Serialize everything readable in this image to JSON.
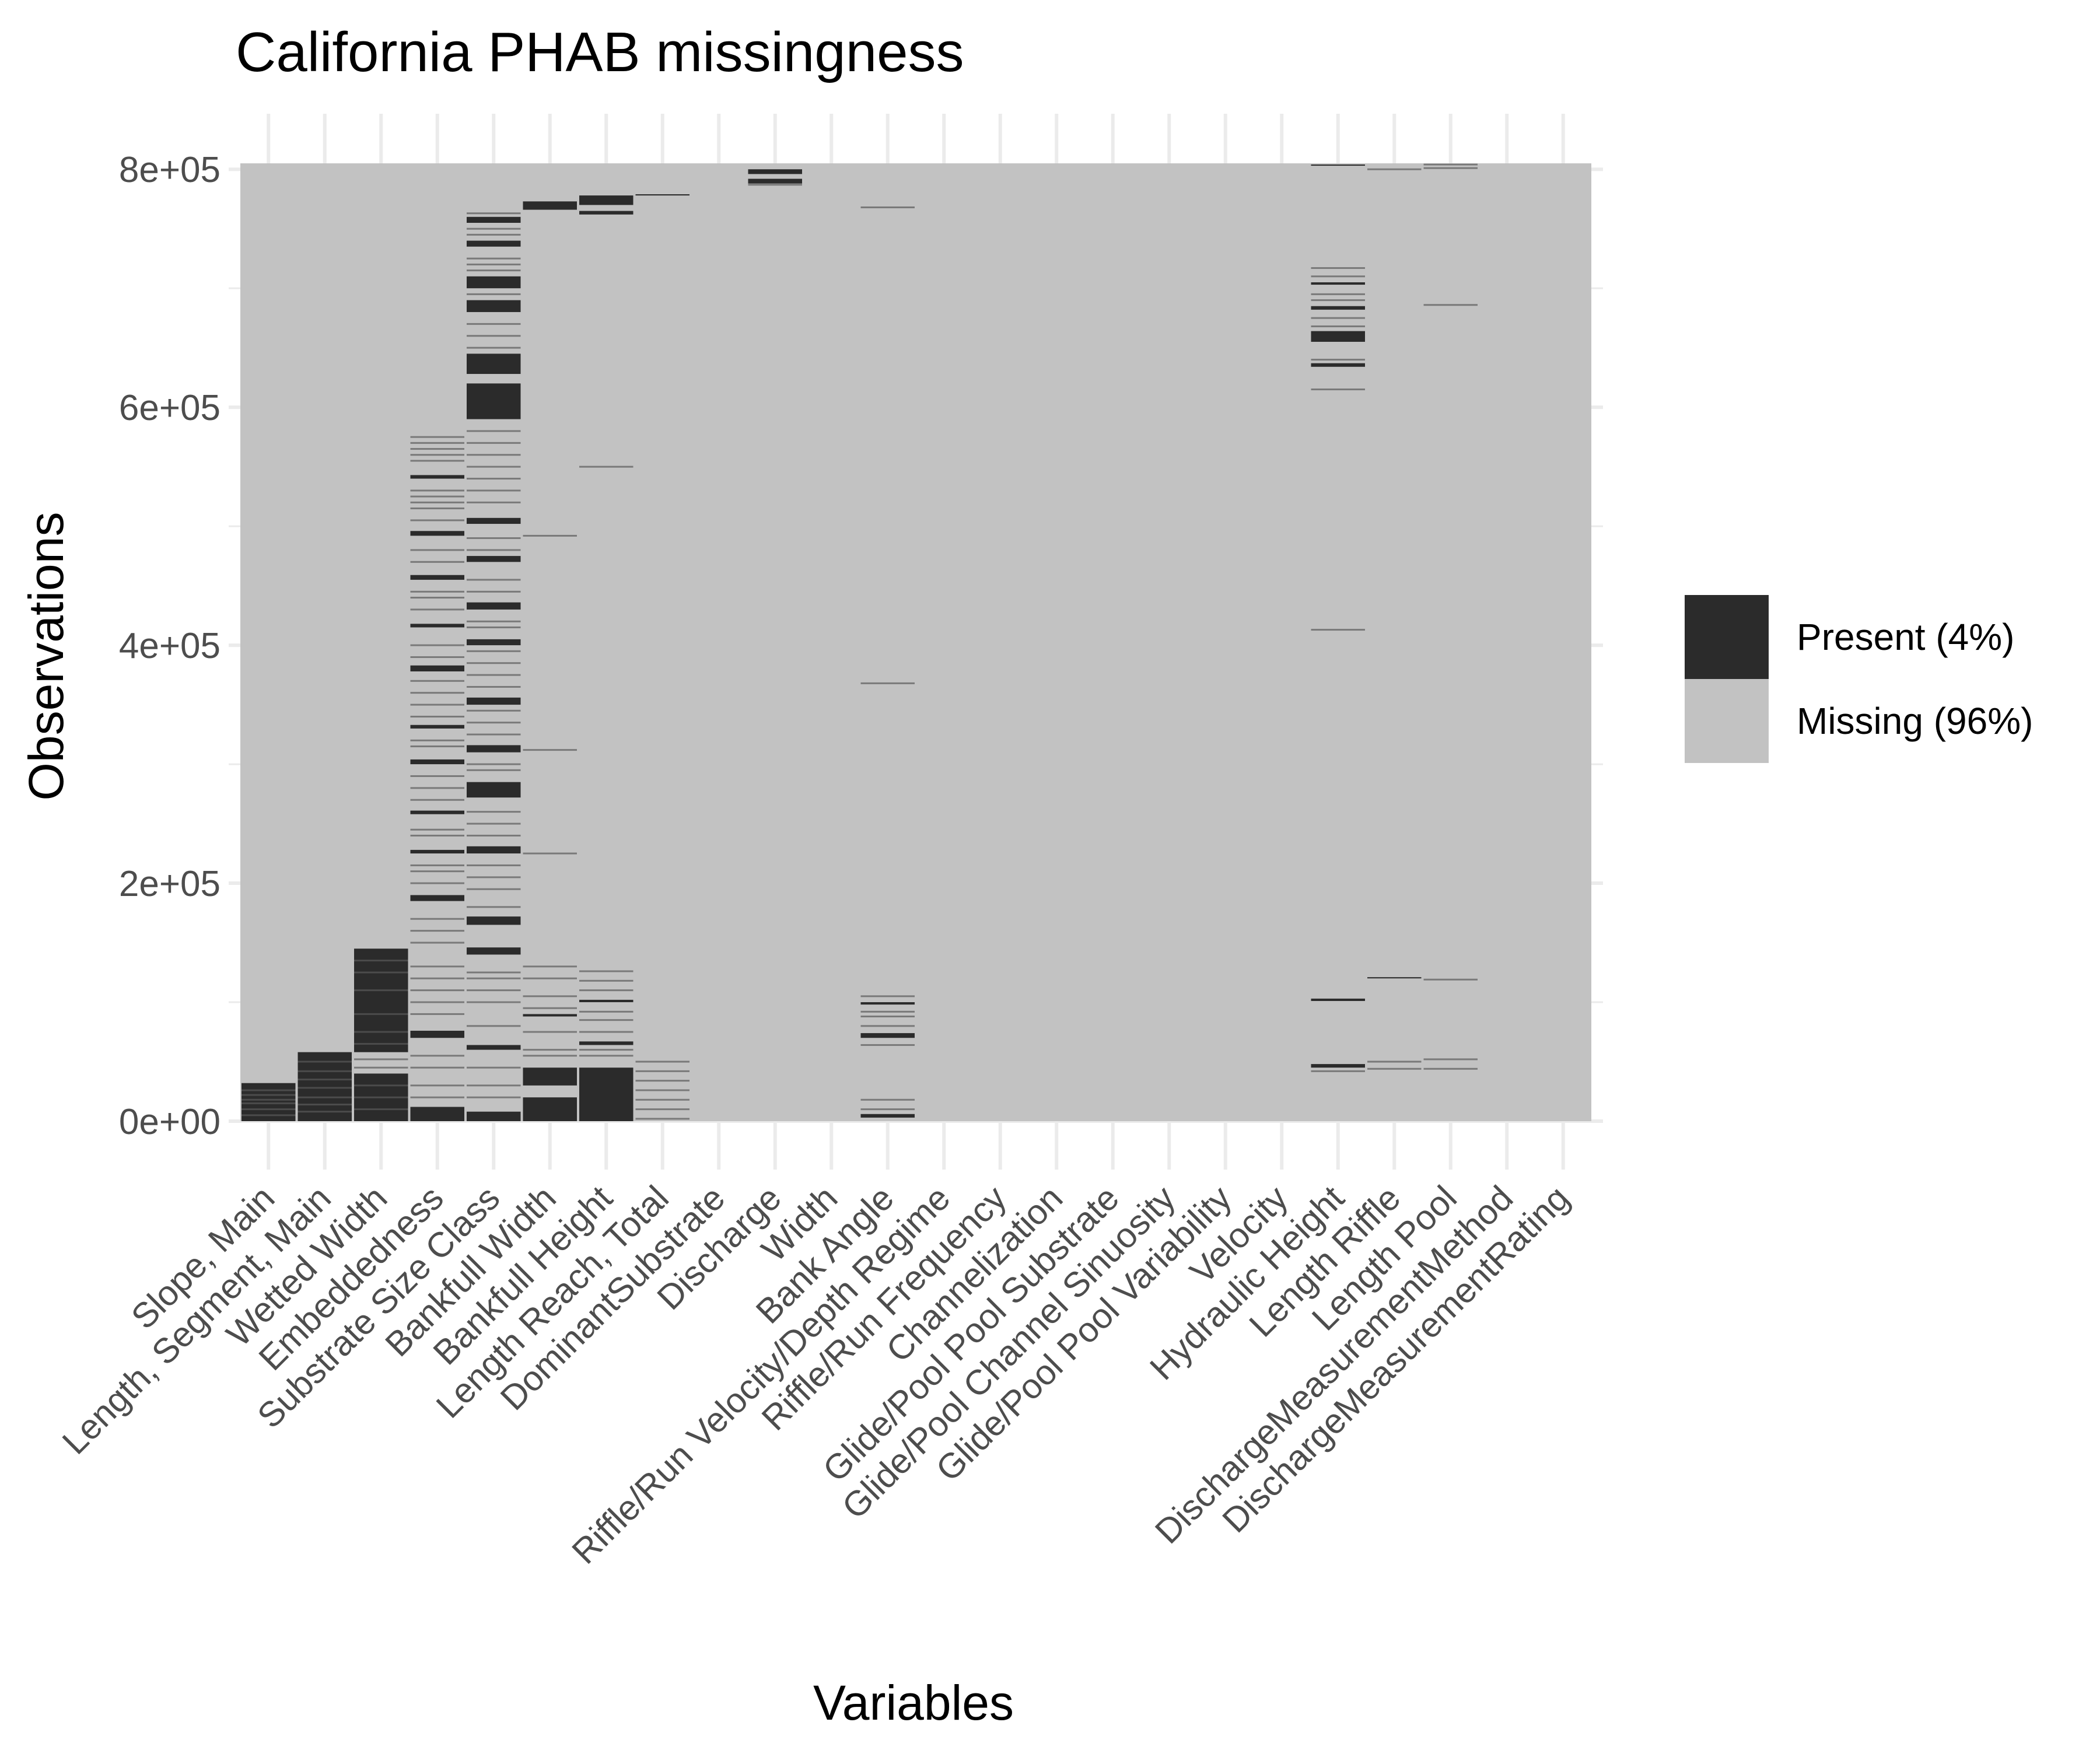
{
  "chart_data": {
    "type": "heatmap",
    "title": "California PHAB missingness",
    "xlabel": "Variables",
    "ylabel": "Observations",
    "ylim": [
      0,
      805000
    ],
    "y_ticks": [
      {
        "value": 0,
        "label": "0e+00"
      },
      {
        "value": 200000,
        "label": "2e+05"
      },
      {
        "value": 400000,
        "label": "4e+05"
      },
      {
        "value": 600000,
        "label": "6e+05"
      },
      {
        "value": 800000,
        "label": "8e+05"
      }
    ],
    "grid": true,
    "legend_position": "right",
    "legend": [
      {
        "label": "Present (4%)",
        "color": "#2b2b2b"
      },
      {
        "label": "Missing (96%)",
        "color": "#c2c2c2"
      }
    ],
    "colors": {
      "present": "#2b2b2b",
      "missing": "#c2c2c2",
      "grid": "#ebebeb"
    },
    "variables": [
      "Slope, Main",
      "Length, Segment, Main",
      "Wetted Width",
      "Embeddedness",
      "Substrate Size Class",
      "Bankfull Width",
      "Bankfull Height",
      "Length Reach, Total",
      "DominantSubstrate",
      "Discharge",
      "Width",
      "Bank Angle",
      "Riffle/Run Velocity/Depth Regime",
      "Riffle/Run Frequency",
      "Channelization",
      "Glide/Pool Pool Substrate",
      "Glide/Pool Channel Sinuosity",
      "Glide/Pool Pool Variability",
      "Velocity",
      "Hydraulic Height",
      "Length Riffle",
      "Length Pool",
      "DischargeMeasurementMethod",
      "DischargeMeasurementRating"
    ],
    "present_ranges": [
      [
        [
          0,
          32000
        ]
      ],
      [
        [
          0,
          58000
        ]
      ],
      [
        [
          0,
          40000
        ],
        [
          58000,
          145000
        ]
      ],
      [
        [
          0,
          12000
        ],
        [
          70000,
          76000
        ],
        [
          185000,
          190000
        ],
        [
          225000,
          228000
        ],
        [
          258000,
          261000
        ],
        [
          300000,
          304000
        ],
        [
          330000,
          333000
        ],
        [
          378000,
          383000
        ],
        [
          415000,
          418000
        ],
        [
          455000,
          459000
        ],
        [
          492000,
          496000
        ],
        [
          540000,
          543000
        ]
      ],
      [
        [
          0,
          8000
        ],
        [
          60000,
          64000
        ],
        [
          140000,
          146000
        ],
        [
          165000,
          172000
        ],
        [
          225000,
          231000
        ],
        [
          272000,
          285000
        ],
        [
          310000,
          316000
        ],
        [
          350000,
          356000
        ],
        [
          400000,
          405000
        ],
        [
          430000,
          436000
        ],
        [
          470000,
          475000
        ],
        [
          502000,
          507000
        ],
        [
          590000,
          620000
        ],
        [
          628000,
          645000
        ],
        [
          680000,
          690000
        ],
        [
          700000,
          710000
        ],
        [
          735000,
          740000
        ],
        [
          755000,
          760000
        ]
      ],
      [
        [
          0,
          20000
        ],
        [
          30000,
          45000
        ],
        [
          88000,
          90000
        ],
        [
          766000,
          773000
        ]
      ],
      [
        [
          0,
          45000
        ],
        [
          64000,
          67000
        ],
        [
          100000,
          102000
        ],
        [
          762000,
          765000
        ],
        [
          770000,
          778000
        ]
      ],
      [
        [
          778000,
          779000
        ]
      ],
      [],
      [
        [
          788000,
          792000
        ],
        [
          796000,
          800000
        ]
      ],
      [],
      [
        [
          3000,
          6000
        ],
        [
          70000,
          74000
        ],
        [
          98000,
          100000
        ]
      ],
      [],
      [],
      [],
      [],
      [],
      [],
      [],
      [
        [
          45000,
          48000
        ],
        [
          101000,
          103000
        ],
        [
          634000,
          637000
        ],
        [
          655000,
          664000
        ],
        [
          682000,
          685000
        ],
        [
          703000,
          705000
        ],
        [
          803000,
          804000
        ]
      ],
      [
        [
          120000,
          121000
        ]
      ],
      [],
      [],
      []
    ],
    "faint_lines": [
      [
        [
          5000,
          10000,
          15000,
          18000,
          22000,
          26000
        ]
      ],
      [
        [
          8000,
          14000,
          20000,
          28000,
          35000,
          42000,
          50000
        ]
      ],
      [
        [
          10000,
          20000,
          30000,
          45000,
          52000,
          65000,
          75000,
          90000,
          110000,
          125000,
          135000
        ]
      ],
      [
        [
          20000,
          30000,
          45000,
          55000,
          90000,
          100000,
          110000,
          120000,
          130000,
          150000,
          160000,
          170000,
          200000,
          210000,
          215000,
          240000,
          245000,
          270000,
          280000,
          290000,
          315000,
          320000,
          340000,
          350000,
          360000,
          370000,
          390000,
          400000,
          430000,
          440000,
          445000,
          470000,
          480000,
          505000,
          515000,
          520000,
          525000,
          530000,
          555000,
          560000,
          565000,
          570000,
          575000
        ]
      ],
      [
        [
          20000,
          30000,
          45000,
          80000,
          100000,
          110000,
          120000,
          125000,
          180000,
          195000,
          205000,
          215000,
          240000,
          250000,
          260000,
          295000,
          300000,
          325000,
          335000,
          345000,
          365000,
          375000,
          385000,
          395000,
          415000,
          420000,
          445000,
          455000,
          480000,
          490000,
          520000,
          530000,
          540000,
          550000,
          560000,
          570000,
          580000,
          650000,
          660000,
          670000,
          695000,
          715000,
          720000,
          725000,
          745000,
          750000,
          763000
        ]
      ],
      [
        [
          55000,
          60000,
          75000,
          95000,
          105000,
          120000,
          130000,
          225000,
          312000,
          492000
        ]
      ],
      [
        [
          55000,
          60000,
          75000,
          85000,
          92000,
          110000,
          118000,
          126000,
          550000
        ]
      ],
      [
        [
          2000,
          10000,
          18000,
          26000,
          34000,
          42000,
          50000
        ]
      ],
      [
        []
      ],
      [
        [
          787000
        ]
      ],
      [
        []
      ],
      [
        [
          10000,
          18000,
          64000,
          80000,
          88000,
          92000,
          105000,
          368000,
          768000
        ]
      ],
      [
        []
      ],
      [
        []
      ],
      [
        []
      ],
      [
        []
      ],
      [
        []
      ],
      [
        []
      ],
      [
        []
      ],
      [
        [
          42000,
          413000,
          615000,
          640000,
          668000,
          675000,
          690000,
          695000,
          710000,
          717000
        ]
      ],
      [
        [
          44000,
          50000,
          800000
        ]
      ],
      [
        [
          44000,
          52000,
          119000,
          686000,
          801000,
          804000
        ]
      ],
      [
        []
      ],
      [
        []
      ]
    ]
  }
}
